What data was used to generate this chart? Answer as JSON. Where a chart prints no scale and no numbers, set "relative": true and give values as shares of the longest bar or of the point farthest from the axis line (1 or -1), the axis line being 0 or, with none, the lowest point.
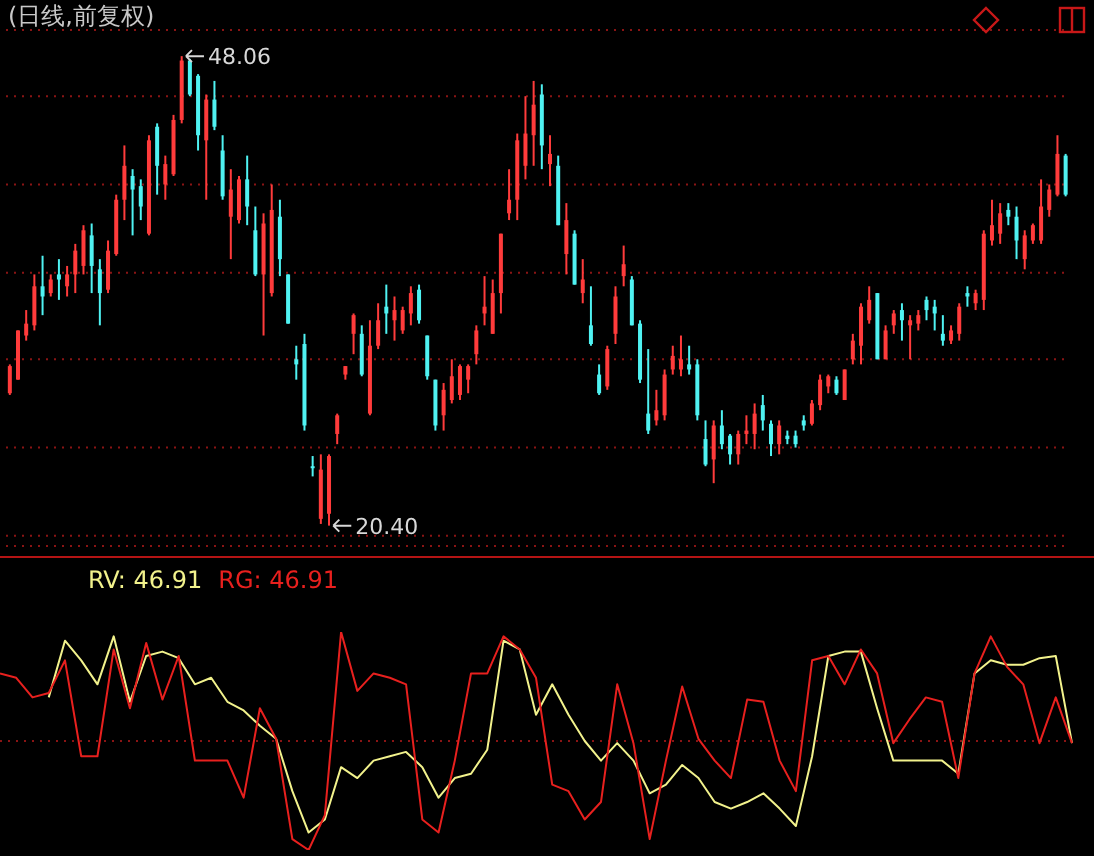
{
  "chart_data": [
    {
      "type": "candlestick",
      "title": "(日线,前复权)",
      "categories": [
        null,
        null,
        null,
        null,
        null,
        null,
        null,
        null,
        null,
        null,
        null,
        null,
        null,
        null,
        null,
        null,
        null,
        null,
        null,
        null,
        null,
        null,
        null,
        null,
        null,
        null,
        null,
        null,
        null,
        null,
        null,
        null,
        null,
        null,
        null,
        null,
        null,
        null,
        null,
        null,
        null,
        null,
        null,
        null,
        null,
        null,
        null,
        null,
        null,
        null,
        null,
        null,
        null,
        null,
        null,
        null,
        null,
        null,
        null,
        null,
        null,
        null,
        null,
        null,
        null,
        null,
        null,
        null,
        null,
        null,
        null,
        null,
        null,
        null,
        null,
        null,
        null,
        null,
        null,
        null,
        null,
        null,
        null,
        null,
        null,
        null,
        null,
        null,
        null,
        null,
        null,
        null,
        null,
        null,
        null,
        null,
        null,
        null,
        null,
        null,
        null,
        null,
        null,
        null,
        null,
        null,
        null,
        null,
        null,
        null,
        null,
        null,
        null,
        null,
        null,
        null,
        null,
        null,
        null,
        null,
        null,
        null,
        null,
        null,
        null,
        null,
        null,
        null,
        null,
        null
      ],
      "ohlc": [
        [
          28.2,
          29.9,
          28.1,
          29.8
        ],
        [
          29.0,
          31.9,
          29.0,
          31.9
        ],
        [
          31.6,
          33.1,
          31.3,
          32.3
        ],
        [
          32.2,
          35.2,
          31.9,
          34.5
        ],
        [
          34.5,
          36.3,
          32.8,
          33.9
        ],
        [
          34.1,
          35.2,
          33.9,
          34.9
        ],
        [
          35.2,
          36.1,
          33.7,
          34.9
        ],
        [
          34.5,
          35.7,
          33.9,
          35.2
        ],
        [
          35.2,
          37.0,
          34.1,
          36.6
        ],
        [
          35.7,
          38.1,
          35.2,
          37.8
        ],
        [
          37.5,
          38.2,
          34.1,
          35.7
        ],
        [
          35.5,
          36.1,
          32.2,
          34.1
        ],
        [
          34.3,
          37.2,
          34.1,
          36.6
        ],
        [
          36.4,
          39.9,
          36.3,
          39.6
        ],
        [
          39.6,
          42.8,
          38.4,
          41.6
        ],
        [
          41.0,
          41.4,
          37.5,
          40.2
        ],
        [
          40.4,
          40.8,
          38.4,
          39.2
        ],
        [
          37.6,
          43.4,
          37.5,
          43.1
        ],
        [
          43.9,
          44.1,
          39.9,
          41.6
        ],
        [
          40.5,
          42.2,
          39.6,
          41.7
        ],
        [
          41.1,
          44.6,
          41.0,
          44.3
        ],
        [
          44.3,
          48.06,
          44.1,
          47.8
        ],
        [
          47.8,
          47.9,
          45.7,
          45.8
        ],
        [
          46.9,
          47.0,
          42.5,
          43.4
        ],
        [
          43.1,
          45.8,
          39.6,
          45.5
        ],
        [
          45.5,
          46.6,
          43.7,
          43.9
        ],
        [
          42.5,
          43.4,
          39.6,
          39.8
        ],
        [
          38.6,
          41.4,
          36.1,
          40.2
        ],
        [
          38.4,
          41.0,
          38.2,
          40.8
        ],
        [
          40.8,
          42.2,
          38.1,
          39.2
        ],
        [
          37.8,
          39.2,
          35.1,
          35.2
        ],
        [
          35.2,
          38.8,
          31.6,
          38.2
        ],
        [
          34.1,
          40.5,
          33.9,
          39.0
        ],
        [
          38.6,
          39.6,
          35.1,
          36.1
        ],
        [
          35.2,
          35.2,
          32.3,
          32.3
        ],
        [
          30.2,
          31.0,
          29.0,
          29.9
        ],
        [
          31.1,
          31.7,
          26.0,
          26.3
        ],
        [
          23.9,
          24.5,
          23.3,
          23.8
        ],
        [
          20.8,
          24.6,
          20.5,
          23.7
        ],
        [
          21.1,
          24.6,
          20.4,
          24.5
        ],
        [
          25.8,
          27.0,
          25.2,
          26.9
        ],
        [
          29.3,
          29.8,
          29.0,
          29.8
        ],
        [
          31.7,
          32.9,
          30.5,
          32.8
        ],
        [
          31.7,
          32.2,
          29.2,
          29.3
        ],
        [
          27.0,
          32.5,
          26.9,
          31.0
        ],
        [
          31.0,
          33.5,
          30.8,
          32.5
        ],
        [
          33.3,
          34.6,
          31.7,
          32.9
        ],
        [
          32.5,
          33.9,
          31.3,
          33.1
        ],
        [
          31.9,
          33.3,
          31.7,
          33.1
        ],
        [
          32.9,
          34.5,
          32.2,
          34.1
        ],
        [
          34.3,
          34.6,
          32.3,
          32.5
        ],
        [
          31.6,
          31.6,
          29.0,
          29.2
        ],
        [
          29.0,
          29.0,
          26.0,
          26.3
        ],
        [
          26.9,
          28.8,
          26.0,
          28.4
        ],
        [
          27.8,
          30.2,
          27.6,
          29.2
        ],
        [
          28.1,
          29.9,
          27.8,
          29.8
        ],
        [
          29.0,
          29.9,
          28.2,
          29.8
        ],
        [
          30.5,
          32.2,
          29.9,
          31.9
        ],
        [
          32.9,
          35.1,
          32.2,
          33.3
        ],
        [
          31.7,
          34.9,
          31.7,
          34.1
        ],
        [
          34.1,
          37.6,
          32.9,
          37.6
        ],
        [
          38.8,
          41.4,
          38.4,
          39.6
        ],
        [
          39.6,
          43.5,
          38.4,
          43.1
        ],
        [
          41.6,
          45.7,
          40.8,
          43.5
        ],
        [
          43.4,
          46.6,
          41.6,
          45.2
        ],
        [
          45.8,
          46.4,
          41.4,
          42.8
        ],
        [
          41.7,
          43.4,
          40.4,
          42.3
        ],
        [
          41.6,
          42.2,
          38.1,
          38.1
        ],
        [
          36.4,
          39.4,
          35.2,
          38.4
        ],
        [
          37.6,
          37.8,
          34.6,
          34.6
        ],
        [
          34.1,
          36.1,
          33.5,
          34.9
        ],
        [
          32.2,
          34.5,
          31.0,
          31.1
        ],
        [
          29.3,
          29.9,
          28.1,
          28.2
        ],
        [
          28.6,
          31.0,
          28.4,
          30.8
        ],
        [
          31.7,
          34.5,
          31.1,
          33.9
        ],
        [
          35.1,
          36.9,
          34.5,
          35.8
        ],
        [
          34.9,
          35.1,
          32.2,
          32.2
        ],
        [
          32.3,
          32.5,
          28.8,
          29.0
        ],
        [
          27.0,
          30.8,
          25.8,
          26.0
        ],
        [
          26.6,
          28.4,
          26.3,
          27.2
        ],
        [
          26.9,
          29.6,
          26.6,
          29.3
        ],
        [
          29.6,
          31.0,
          29.3,
          30.4
        ],
        [
          29.6,
          31.6,
          29.2,
          30.2
        ],
        [
          29.9,
          31.0,
          29.3,
          29.6
        ],
        [
          29.9,
          30.2,
          26.6,
          26.9
        ],
        [
          25.5,
          26.6,
          23.9,
          24.0
        ],
        [
          24.3,
          26.6,
          22.9,
          26.3
        ],
        [
          26.3,
          27.2,
          24.9,
          25.2
        ],
        [
          25.7,
          25.8,
          24.0,
          24.6
        ],
        [
          24.6,
          26.0,
          24.0,
          25.8
        ],
        [
          25.8,
          26.9,
          25.2,
          26.0
        ],
        [
          25.8,
          27.6,
          24.9,
          27.0
        ],
        [
          27.5,
          28.1,
          26.0,
          26.6
        ],
        [
          26.4,
          26.6,
          24.5,
          25.2
        ],
        [
          25.2,
          26.6,
          24.6,
          26.3
        ],
        [
          25.7,
          26.0,
          25.2,
          25.5
        ],
        [
          25.7,
          26.0,
          25.0,
          25.2
        ],
        [
          26.6,
          26.9,
          26.0,
          26.3
        ],
        [
          26.4,
          27.8,
          26.3,
          27.6
        ],
        [
          27.5,
          29.3,
          27.2,
          29.0
        ],
        [
          28.6,
          29.3,
          28.2,
          29.2
        ],
        [
          29.0,
          29.2,
          28.1,
          28.2
        ],
        [
          27.8,
          29.6,
          27.8,
          29.6
        ],
        [
          30.2,
          31.7,
          29.9,
          31.3
        ],
        [
          31.0,
          33.5,
          29.9,
          33.3
        ],
        [
          32.5,
          34.5,
          32.3,
          33.7
        ],
        [
          34.1,
          34.1,
          30.2,
          30.2
        ],
        [
          30.2,
          32.2,
          30.2,
          31.9
        ],
        [
          32.2,
          33.1,
          31.7,
          32.9
        ],
        [
          33.1,
          33.5,
          31.3,
          32.5
        ],
        [
          32.2,
          32.8,
          30.2,
          32.5
        ],
        [
          32.3,
          33.1,
          31.9,
          32.8
        ],
        [
          33.7,
          33.9,
          32.5,
          33.1
        ],
        [
          33.3,
          33.7,
          31.9,
          32.9
        ],
        [
          31.7,
          32.8,
          31.0,
          31.3
        ],
        [
          31.3,
          32.2,
          31.1,
          31.9
        ],
        [
          31.7,
          33.5,
          31.3,
          33.3
        ],
        [
          34.1,
          34.5,
          33.3,
          33.9
        ],
        [
          33.5,
          34.3,
          33.1,
          34.1
        ],
        [
          33.7,
          37.8,
          33.1,
          37.6
        ],
        [
          37.2,
          39.6,
          36.9,
          38.1
        ],
        [
          37.6,
          39.4,
          37.0,
          38.8
        ],
        [
          39.0,
          39.4,
          38.1,
          38.6
        ],
        [
          38.6,
          39.2,
          36.1,
          37.2
        ],
        [
          36.1,
          37.8,
          35.5,
          37.5
        ],
        [
          37.2,
          38.2,
          37.0,
          38.1
        ],
        [
          37.2,
          40.8,
          37.0,
          39.2
        ],
        [
          39.0,
          40.5,
          38.6,
          40.2
        ],
        [
          39.9,
          43.4,
          39.8,
          42.3
        ],
        [
          42.2,
          42.3,
          39.8,
          39.9
        ]
      ],
      "colors": [
        "#ff3b3b",
        "#ff3b3b",
        "#ff3b3b",
        "#ff3b3b",
        "#4ff2f2",
        "#ff3b3b",
        "#4ff2f2",
        "#ff3b3b",
        "#ff3b3b",
        "#ff3b3b",
        "#4ff2f2",
        "#4ff2f2",
        "#ff3b3b",
        "#ff3b3b",
        "#ff3b3b",
        "#4ff2f2",
        "#4ff2f2",
        "#ff3b3b",
        "#4ff2f2",
        "#ff3b3b",
        "#ff3b3b",
        "#ff3b3b",
        "#4ff2f2",
        "#4ff2f2",
        "#ff3b3b",
        "#4ff2f2",
        "#4ff2f2",
        "#ff3b3b",
        "#ff3b3b",
        "#4ff2f2",
        "#4ff2f2",
        "#ff3b3b",
        "#ff3b3b",
        "#4ff2f2",
        "#4ff2f2",
        "#4ff2f2",
        "#4ff2f2",
        "#4ff2f2",
        "#ff3b3b",
        "#ff3b3b",
        "#ff3b3b",
        "#ff3b3b",
        "#ff3b3b",
        "#4ff2f2",
        "#ff3b3b",
        "#ff3b3b",
        "#4ff2f2",
        "#ff3b3b",
        "#ff3b3b",
        "#ff3b3b",
        "#4ff2f2",
        "#4ff2f2",
        "#4ff2f2",
        "#ff3b3b",
        "#ff3b3b",
        "#ff3b3b",
        "#ff3b3b",
        "#ff3b3b",
        "#ff3b3b",
        "#ff3b3b",
        "#ff3b3b",
        "#ff3b3b",
        "#ff3b3b",
        "#ff3b3b",
        "#ff3b3b",
        "#4ff2f2",
        "#ff3b3b",
        "#4ff2f2",
        "#ff3b3b",
        "#4ff2f2",
        "#ff3b3b",
        "#4ff2f2",
        "#4ff2f2",
        "#ff3b3b",
        "#ff3b3b",
        "#ff3b3b",
        "#4ff2f2",
        "#4ff2f2",
        "#4ff2f2",
        "#ff3b3b",
        "#ff3b3b",
        "#ff3b3b",
        "#ff3b3b",
        "#4ff2f2",
        "#4ff2f2",
        "#4ff2f2",
        "#ff3b3b",
        "#4ff2f2",
        "#4ff2f2",
        "#ff3b3b",
        "#ff3b3b",
        "#ff3b3b",
        "#4ff2f2",
        "#4ff2f2",
        "#ff3b3b",
        "#4ff2f2",
        "#4ff2f2",
        "#4ff2f2",
        "#ff3b3b",
        "#ff3b3b",
        "#ff3b3b",
        "#4ff2f2",
        "#ff3b3b",
        "#ff3b3b",
        "#ff3b3b",
        "#ff3b3b",
        "#4ff2f2",
        "#ff3b3b",
        "#ff3b3b",
        "#4ff2f2",
        "#ff3b3b",
        "#ff3b3b",
        "#4ff2f2",
        "#4ff2f2",
        "#4ff2f2",
        "#ff3b3b",
        "#ff3b3b",
        "#4ff2f2",
        "#ff3b3b",
        "#ff3b3b",
        "#ff3b3b",
        "#ff3b3b",
        "#4ff2f2",
        "#4ff2f2",
        "#ff3b3b",
        "#ff3b3b",
        "#ff3b3b",
        "#ff3b3b",
        "#ff3b3b",
        "#4ff2f2"
      ],
      "ylim": [
        19.2,
        49.6
      ],
      "yticks": [
        {
          "value": 19.8,
          "label": null
        },
        {
          "value": 25.0,
          "label": null
        },
        {
          "value": 30.2,
          "label": null
        },
        {
          "value": 35.3,
          "label": null
        },
        {
          "value": 40.5,
          "label": null
        },
        {
          "value": 45.7,
          "label": null
        }
      ],
      "grid": "y",
      "annotations": [
        "48.06",
        "20.40"
      ]
    },
    {
      "type": "line",
      "relative": true,
      "legend": "top left",
      "marker": "none",
      "categories": [
        null,
        null,
        null,
        null,
        null,
        null,
        null,
        null,
        null,
        null,
        null,
        null,
        null,
        null,
        null,
        null,
        null,
        null,
        null,
        null,
        null,
        null,
        null,
        null,
        null,
        null,
        null,
        null,
        null,
        null,
        null,
        null,
        null,
        null,
        null,
        null,
        null,
        null,
        null,
        null,
        null,
        null,
        null,
        null,
        null,
        null,
        null,
        null,
        null,
        null,
        null,
        null,
        null,
        null,
        null,
        null,
        null,
        null,
        null,
        null,
        null,
        null,
        null,
        null,
        null,
        null,
        null
      ],
      "series": [
        {
          "name": "RV: 46.91",
          "color": "#f2f28c",
          "values": [
            null,
            null,
            null,
            0.7,
            0.96,
            0.87,
            0.76,
            0.98,
            0.68,
            0.89,
            0.91,
            0.88,
            0.76,
            0.79,
            0.68,
            0.64,
            0.57,
            0.51,
            0.27,
            0.08,
            0.14,
            0.38,
            0.33,
            0.41,
            0.43,
            0.45,
            0.38,
            0.24,
            0.33,
            0.35,
            0.46,
            0.96,
            0.92,
            0.62,
            0.76,
            0.62,
            0.5,
            0.41,
            0.49,
            0.41,
            0.26,
            0.3,
            0.39,
            0.33,
            0.22,
            0.19,
            0.22,
            0.26,
            0.19,
            0.11,
            0.43,
            0.89,
            0.91,
            0.91,
            0.65,
            0.41,
            0.41,
            0.41,
            0.41,
            0.35,
            0.81,
            0.87,
            0.85,
            0.85,
            0.88,
            0.89,
            0.49
          ]
        },
        {
          "name": "RG: 46.91",
          "color": "#e8201e",
          "values": [
            0.81,
            0.79,
            0.7,
            0.72,
            0.87,
            0.43,
            0.43,
            0.92,
            0.65,
            0.95,
            0.69,
            0.89,
            0.41,
            0.41,
            0.41,
            0.24,
            0.65,
            0.51,
            0.05,
            0,
            0.16,
            1.0,
            0.73,
            0.81,
            0.79,
            0.76,
            0.14,
            0.08,
            0.41,
            0.81,
            0.81,
            0.98,
            0.92,
            0.79,
            0.3,
            0.27,
            0.14,
            0.22,
            0.76,
            0.49,
            0.05,
            0.41,
            0.75,
            0.51,
            0.41,
            0.33,
            0.69,
            0.68,
            0.41,
            0.27,
            0.87,
            0.89,
            0.76,
            0.92,
            0.81,
            0.49,
            0.6,
            0.7,
            0.68,
            0.33,
            0.81,
            0.98,
            0.84,
            0.76,
            0.49,
            0.7,
            0.49
          ]
        }
      ],
      "ref_lines": [
        {
          "axis": "y",
          "value": 0.5,
          "color": "#8a1414",
          "line_style": "dotted"
        }
      ]
    }
  ]
}
